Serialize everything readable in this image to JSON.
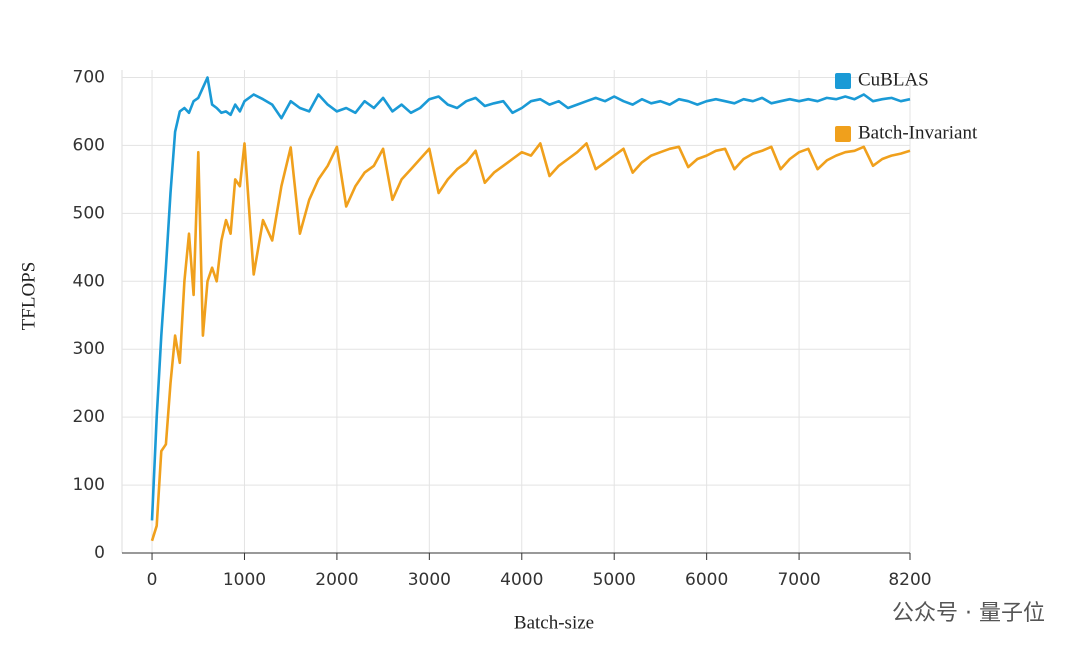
{
  "chart_data": {
    "type": "line",
    "x_label": "Batch-size",
    "y_label": "TFLOPS",
    "x": [
      0,
      50,
      100,
      150,
      200,
      250,
      300,
      350,
      400,
      450,
      500,
      550,
      600,
      650,
      700,
      750,
      800,
      850,
      900,
      950,
      1000,
      1100,
      1200,
      1300,
      1400,
      1500,
      1600,
      1700,
      1800,
      1900,
      2000,
      2100,
      2200,
      2300,
      2400,
      2500,
      2600,
      2700,
      2800,
      2900,
      3000,
      3100,
      3200,
      3300,
      3400,
      3500,
      3600,
      3700,
      3800,
      3900,
      4000,
      4100,
      4200,
      4300,
      4400,
      4500,
      4600,
      4700,
      4800,
      4900,
      5000,
      5100,
      5200,
      5300,
      5400,
      5500,
      5600,
      5700,
      5800,
      5900,
      6000,
      6100,
      6200,
      6300,
      6400,
      6500,
      6600,
      6700,
      6800,
      6900,
      7000,
      7100,
      7200,
      7300,
      7400,
      7500,
      7600,
      7700,
      7800,
      7900,
      8000,
      8100,
      8200
    ],
    "series": [
      {
        "name": "CuBLAS",
        "color": "#1a9ad6",
        "values": [
          48,
          200,
          320,
          420,
          530,
          620,
          650,
          655,
          648,
          665,
          670,
          685,
          700,
          660,
          655,
          648,
          650,
          645,
          660,
          650,
          665,
          675,
          668,
          660,
          640,
          665,
          655,
          650,
          675,
          660,
          650,
          655,
          648,
          665,
          655,
          670,
          650,
          660,
          648,
          655,
          668,
          672,
          660,
          655,
          665,
          670,
          658,
          662,
          665,
          648,
          655,
          665,
          668,
          660,
          665,
          655,
          660,
          665,
          670,
          665,
          672,
          665,
          660,
          668,
          662,
          665,
          660,
          668,
          665,
          660,
          665,
          668,
          665,
          662,
          668,
          665,
          670,
          662,
          665,
          668,
          665,
          668,
          665,
          670,
          668,
          672,
          668,
          675,
          665,
          668,
          670,
          665,
          668
        ]
      },
      {
        "name": "Batch-Invariant",
        "color": "#f0a01c",
        "values": [
          18,
          40,
          150,
          160,
          250,
          320,
          280,
          400,
          470,
          380,
          590,
          320,
          400,
          420,
          400,
          460,
          490,
          470,
          550,
          540,
          603,
          410,
          490,
          460,
          540,
          597,
          470,
          520,
          550,
          570,
          598,
          510,
          540,
          560,
          570,
          595,
          520,
          550,
          565,
          580,
          595,
          530,
          550,
          565,
          575,
          592,
          545,
          560,
          570,
          580,
          590,
          585,
          603,
          555,
          570,
          580,
          590,
          603,
          565,
          575,
          585,
          595,
          560,
          575,
          585,
          590,
          595,
          598,
          568,
          580,
          585,
          592,
          595,
          565,
          580,
          588,
          592,
          598,
          565,
          580,
          590,
          595,
          565,
          578,
          585,
          590,
          592,
          598,
          570,
          580,
          585,
          588,
          592
        ]
      }
    ],
    "xlim": [
      -325,
      8200
    ],
    "ylim": [
      0,
      711
    ],
    "xticks": [
      0,
      1000,
      2000,
      3000,
      4000,
      5000,
      6000,
      7000,
      8200
    ],
    "yticks": [
      0,
      100,
      200,
      300,
      400,
      500,
      600,
      700
    ],
    "grid": true,
    "legend": "upper right",
    "watermark": "公众号 · 量子位"
  }
}
